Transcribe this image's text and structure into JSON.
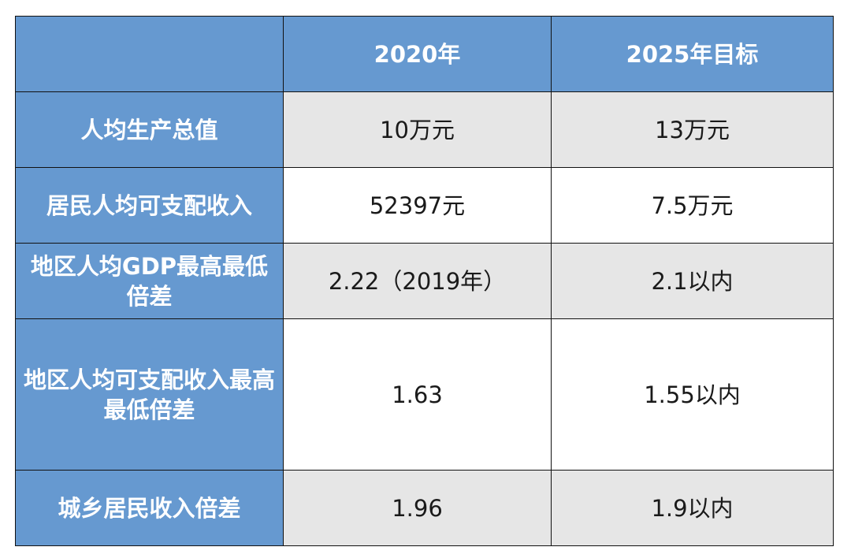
{
  "colors": {
    "header_bg": "#6699d0",
    "header_text": "#ffffff",
    "shaded_row": "#e6e6e6",
    "plain_row": "#ffffff",
    "border": "#111111"
  },
  "header": {
    "corner": "",
    "col_2020": "2020年",
    "col_2025": "2025年目标"
  },
  "rows": [
    {
      "label": "人均生产总值",
      "v2020": "10万元",
      "v2025": "13万元"
    },
    {
      "label": "居民人均可支配收入",
      "v2020": "52397元",
      "v2025": "7.5万元"
    },
    {
      "label": "地区人均GDP最高最低倍差",
      "v2020": "2.22（2019年）",
      "v2025": "2.1以内"
    },
    {
      "label": "地区人均可支配收入最高最低倍差",
      "v2020": "1.63",
      "v2025": "1.55以内"
    },
    {
      "label": "城乡居民收入倍差",
      "v2020": "1.96",
      "v2025": "1.9以内"
    }
  ]
}
